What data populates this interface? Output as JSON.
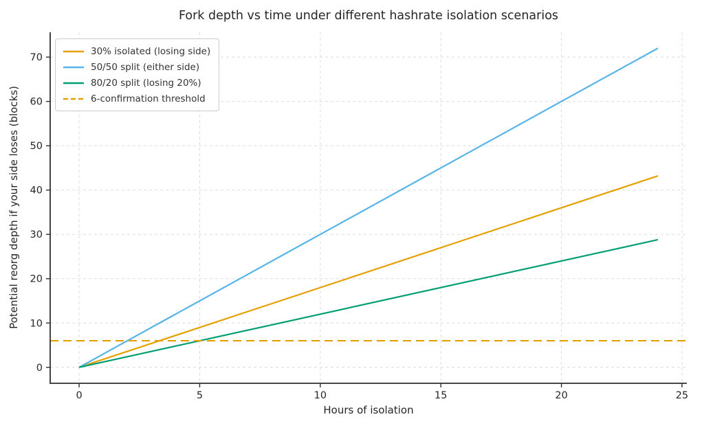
{
  "chart_data": {
    "type": "line",
    "title": "Fork depth vs time under different hashrate isolation scenarios",
    "xlabel": "Hours of isolation",
    "ylabel": "Potential reorg depth if your side loses (blocks)",
    "xlim": [
      -1.2,
      25.2
    ],
    "ylim": [
      -3.6,
      75.6
    ],
    "xticks": [
      0,
      5,
      10,
      15,
      20,
      25
    ],
    "yticks": [
      0,
      10,
      20,
      30,
      40,
      50,
      60,
      70
    ],
    "grid": true,
    "grid_style": "dashed",
    "legend_position": "upper-left",
    "series": [
      {
        "name": "30% isolated (losing side)",
        "color": "#E69F00",
        "style": "solid",
        "x": [
          0,
          24
        ],
        "y": [
          0,
          43.2
        ]
      },
      {
        "name": "50/50 split (either side)",
        "color": "#56B4E9",
        "style": "solid",
        "x": [
          0,
          24
        ],
        "y": [
          0,
          72
        ]
      },
      {
        "name": "80/20 split (losing 20%)",
        "color": "#009E73",
        "style": "solid",
        "x": [
          0,
          24
        ],
        "y": [
          0,
          28.8
        ]
      },
      {
        "name": "6-confirmation threshold",
        "color": "#E69F00",
        "style": "dashed",
        "x": [
          -1.2,
          25.2
        ],
        "y": [
          6,
          6
        ]
      }
    ],
    "colors": {
      "text": "#262626",
      "spine": "#2e2e2e",
      "grid": "#dbdbdb",
      "background": "#ffffff"
    }
  }
}
